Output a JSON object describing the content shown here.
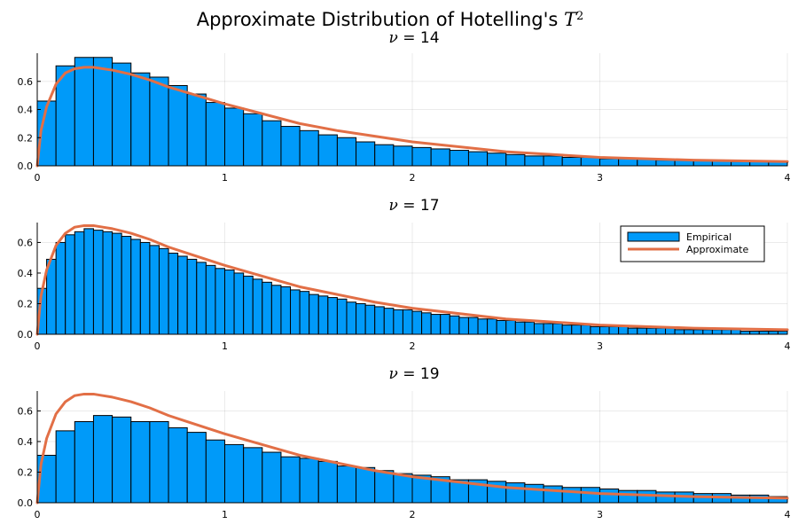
{
  "suptitle": {
    "prefix": "Approximate Distribution of Hotelling's ",
    "symbol": "T",
    "exponent": "2"
  },
  "colors": {
    "histogram": "#009AF9",
    "curve": "#E26F46"
  },
  "legend": {
    "position": "top-right of middle panel",
    "entries": [
      {
        "label": "Empirical",
        "kind": "bar"
      },
      {
        "label": "Approximate",
        "kind": "line"
      }
    ]
  },
  "chart_data": [
    {
      "type": "bar",
      "title_symbol": "ν",
      "title_eq": " = ",
      "title_value": "14",
      "xlim": [
        0,
        4
      ],
      "ylim": [
        0,
        0.8
      ],
      "xticks": [
        0,
        1,
        2,
        3,
        4
      ],
      "yticks": [
        0.0,
        0.2,
        0.4,
        0.6
      ],
      "ytick_labels": [
        "0.0",
        "0.2",
        "0.4",
        "0.6"
      ],
      "grid": true,
      "bin_width": 0.1,
      "bin_start": 0,
      "values": [
        0.46,
        0.71,
        0.77,
        0.77,
        0.73,
        0.66,
        0.63,
        0.57,
        0.51,
        0.45,
        0.41,
        0.37,
        0.32,
        0.28,
        0.25,
        0.22,
        0.2,
        0.17,
        0.15,
        0.14,
        0.13,
        0.12,
        0.11,
        0.1,
        0.09,
        0.08,
        0.07,
        0.07,
        0.06,
        0.06,
        0.05,
        0.05,
        0.05,
        0.04,
        0.04,
        0.04,
        0.04,
        0.03,
        0.03,
        0.03
      ],
      "curve": {
        "x": [
          0,
          0.02,
          0.05,
          0.1,
          0.15,
          0.2,
          0.25,
          0.3,
          0.35,
          0.4,
          0.5,
          0.6,
          0.7,
          0.8,
          1.0,
          1.2,
          1.4,
          1.6,
          1.8,
          2.0,
          2.5,
          3.0,
          3.5,
          4.0
        ],
        "y": [
          0,
          0.25,
          0.42,
          0.58,
          0.66,
          0.69,
          0.7,
          0.7,
          0.69,
          0.68,
          0.65,
          0.61,
          0.56,
          0.52,
          0.44,
          0.37,
          0.3,
          0.25,
          0.21,
          0.17,
          0.1,
          0.06,
          0.04,
          0.03
        ]
      }
    },
    {
      "type": "bar",
      "title_symbol": "ν",
      "title_eq": " = ",
      "title_value": "17",
      "xlim": [
        0,
        4
      ],
      "ylim": [
        0,
        0.73
      ],
      "xticks": [
        0,
        1,
        2,
        3,
        4
      ],
      "yticks": [
        0.0,
        0.2,
        0.4,
        0.6
      ],
      "ytick_labels": [
        "0.0",
        "0.2",
        "0.4",
        "0.6"
      ],
      "grid": true,
      "bin_width": 0.05,
      "bin_start": 0,
      "values": [
        0.3,
        0.49,
        0.6,
        0.65,
        0.67,
        0.69,
        0.68,
        0.67,
        0.66,
        0.64,
        0.62,
        0.6,
        0.58,
        0.56,
        0.53,
        0.51,
        0.49,
        0.47,
        0.45,
        0.43,
        0.42,
        0.4,
        0.38,
        0.36,
        0.34,
        0.32,
        0.31,
        0.29,
        0.28,
        0.26,
        0.25,
        0.24,
        0.23,
        0.21,
        0.2,
        0.19,
        0.18,
        0.17,
        0.16,
        0.16,
        0.15,
        0.14,
        0.13,
        0.13,
        0.12,
        0.11,
        0.11,
        0.1,
        0.1,
        0.09,
        0.09,
        0.08,
        0.08,
        0.07,
        0.07,
        0.07,
        0.06,
        0.06,
        0.06,
        0.05,
        0.05,
        0.05,
        0.05,
        0.04,
        0.04,
        0.04,
        0.04,
        0.04,
        0.03,
        0.03,
        0.03,
        0.03,
        0.03,
        0.03,
        0.03,
        0.02,
        0.02,
        0.02,
        0.02,
        0.02
      ],
      "curve": {
        "x": [
          0,
          0.02,
          0.05,
          0.1,
          0.15,
          0.2,
          0.25,
          0.3,
          0.35,
          0.4,
          0.5,
          0.6,
          0.7,
          0.8,
          1.0,
          1.2,
          1.4,
          1.6,
          1.8,
          2.0,
          2.5,
          3.0,
          3.5,
          4.0
        ],
        "y": [
          0,
          0.25,
          0.42,
          0.58,
          0.66,
          0.7,
          0.71,
          0.71,
          0.7,
          0.69,
          0.66,
          0.62,
          0.57,
          0.53,
          0.45,
          0.38,
          0.31,
          0.26,
          0.21,
          0.17,
          0.1,
          0.06,
          0.04,
          0.03
        ]
      }
    },
    {
      "type": "bar",
      "title_symbol": "ν",
      "title_eq": " = ",
      "title_value": "19",
      "xlim": [
        0,
        4
      ],
      "ylim": [
        0,
        0.73
      ],
      "xticks": [
        0,
        1,
        2,
        3,
        4
      ],
      "yticks": [
        0.0,
        0.2,
        0.4,
        0.6
      ],
      "ytick_labels": [
        "0.0",
        "0.2",
        "0.4",
        "0.6"
      ],
      "grid": true,
      "bin_width": 0.1,
      "bin_start": 0,
      "values": [
        0.31,
        0.47,
        0.53,
        0.57,
        0.56,
        0.53,
        0.53,
        0.49,
        0.46,
        0.41,
        0.38,
        0.36,
        0.33,
        0.3,
        0.29,
        0.27,
        0.24,
        0.23,
        0.21,
        0.19,
        0.18,
        0.17,
        0.15,
        0.15,
        0.14,
        0.13,
        0.12,
        0.11,
        0.1,
        0.1,
        0.09,
        0.08,
        0.08,
        0.07,
        0.07,
        0.06,
        0.06,
        0.05,
        0.05,
        0.04
      ],
      "curve": {
        "x": [
          0,
          0.02,
          0.05,
          0.1,
          0.15,
          0.2,
          0.25,
          0.3,
          0.35,
          0.4,
          0.5,
          0.6,
          0.7,
          0.8,
          1.0,
          1.2,
          1.4,
          1.6,
          1.8,
          2.0,
          2.5,
          3.0,
          3.5,
          4.0
        ],
        "y": [
          0,
          0.25,
          0.42,
          0.58,
          0.66,
          0.7,
          0.71,
          0.71,
          0.7,
          0.69,
          0.66,
          0.62,
          0.57,
          0.53,
          0.45,
          0.38,
          0.31,
          0.26,
          0.21,
          0.17,
          0.1,
          0.06,
          0.04,
          0.03
        ]
      }
    }
  ]
}
